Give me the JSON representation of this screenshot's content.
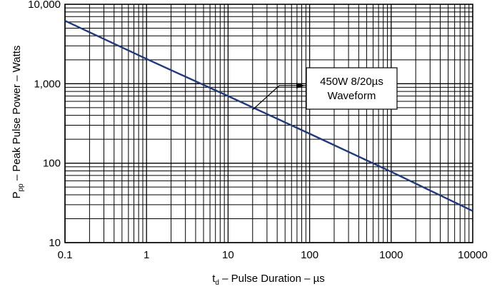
{
  "chart_data": {
    "type": "line",
    "x_scale": "log",
    "y_scale": "log",
    "xlim": [
      0.1,
      10000
    ],
    "ylim": [
      10,
      10000
    ],
    "x_ticks": [
      {
        "value": 0.1,
        "label": "0.1"
      },
      {
        "value": 1,
        "label": "1"
      },
      {
        "value": 10,
        "label": "10"
      },
      {
        "value": 100,
        "label": "100"
      },
      {
        "value": 1000,
        "label": "1000"
      },
      {
        "value": 10000,
        "label": "10000"
      }
    ],
    "y_ticks": [
      {
        "value": 10,
        "label": "10"
      },
      {
        "value": 100,
        "label": "100"
      },
      {
        "value": 1000,
        "label": "1,000"
      },
      {
        "value": 10000,
        "label": "10,000"
      }
    ],
    "xlabel": {
      "main": "t",
      "sub": "d",
      "rest": " – Pulse Duration – µs"
    },
    "ylabel": {
      "main": "P",
      "sub": "pp",
      "rest": " – Peak Pulse Power – Watts"
    },
    "grid": true,
    "series": [
      {
        "color": "#1f3a7a",
        "x": [
          0.1,
          1,
          10,
          100,
          1000,
          10000
        ],
        "y": [
          6200,
          2050,
          700,
          235,
          78,
          25
        ]
      }
    ],
    "annotation": {
      "lines": [
        "450W 8/20µs",
        "Waveform"
      ],
      "points_to": {
        "x": 20,
        "y": 470
      }
    }
  }
}
